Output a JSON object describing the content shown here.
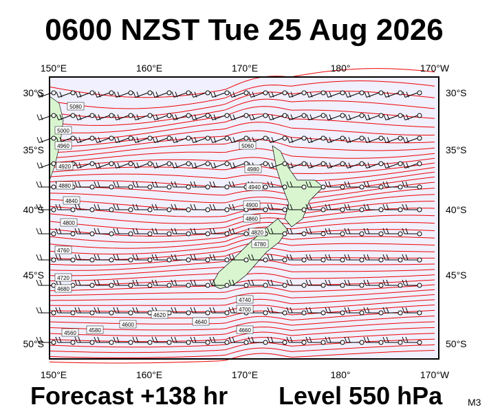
{
  "title": "0600 NZST Tue 25 Aug 2026",
  "lon_labels": [
    "150°E",
    "160°E",
    "170°E",
    "180°",
    "170°W"
  ],
  "lat_labels": [
    "30°S",
    "35°S",
    "40°S",
    "45°S",
    "50°S"
  ],
  "contour_labels": [
    "5080",
    "5060",
    "5000",
    "4980",
    "4960",
    "4940",
    "4920",
    "4900",
    "4880",
    "4860",
    "4840",
    "4820",
    "4800",
    "4780",
    "4760",
    "4740",
    "4720",
    "4700",
    "4680",
    "4660",
    "4640",
    "4620",
    "4600",
    "4580",
    "4560"
  ],
  "footer": {
    "forecast": "Forecast +138 hr",
    "level": "Level 550 hPa",
    "model": "M3"
  }
}
